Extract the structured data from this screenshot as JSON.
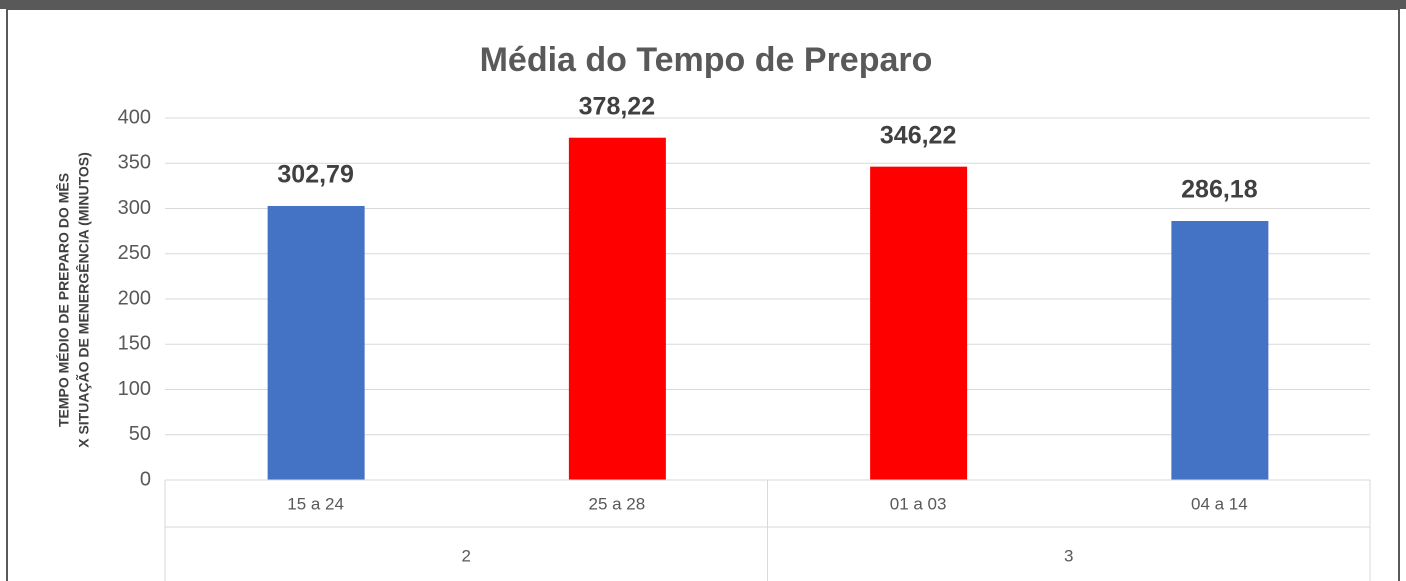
{
  "chart_data": {
    "type": "bar",
    "title": "Média do Tempo de Preparo",
    "y_label": [
      "TEMPO MÉDIO DE PREPARO DO MÊS",
      "X SITUAÇÃO DE MENERGÊNCIA (MINUTOS)"
    ],
    "categories": [
      "15 a 24",
      "25 a 28",
      "01 a 03",
      "04 a 14"
    ],
    "groups": [
      {
        "label": "2",
        "count": 2
      },
      {
        "label": "3",
        "count": 2
      }
    ],
    "values": [
      302.79,
      378.22,
      346.22,
      286.18
    ],
    "value_labels": [
      "302,79",
      "378,22",
      "346,22",
      "286,18"
    ],
    "colors": [
      "#4472c4",
      "#ff0000",
      "#ff0000",
      "#4472c4"
    ],
    "ylim": [
      0,
      400
    ],
    "yticks": [
      0,
      50,
      100,
      150,
      200,
      250,
      300,
      350,
      400
    ],
    "grid": true
  }
}
